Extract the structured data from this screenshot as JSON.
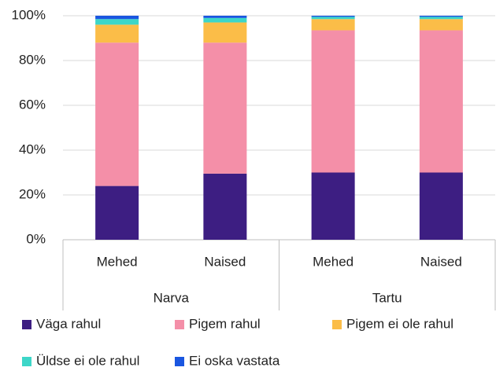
{
  "chart_data": {
    "type": "stacked_bar",
    "categories": [
      "Mehed",
      "Naised",
      "Mehed",
      "Naised"
    ],
    "groups": [
      "Narva",
      "Tartu"
    ],
    "series": [
      {
        "name": "Väga rahul",
        "color": "#3d1e82",
        "values": [
          24,
          29.5,
          30,
          30
        ]
      },
      {
        "name": "Pigem rahul",
        "color": "#f48fa8",
        "values": [
          64,
          58.5,
          63.5,
          63.5
        ]
      },
      {
        "name": "Pigem ei ole rahul",
        "color": "#fbbd48",
        "values": [
          8,
          9,
          5,
          5
        ]
      },
      {
        "name": "Üldse ei ole rahul",
        "color": "#3dd6c8",
        "values": [
          2.5,
          2,
          1,
          1
        ]
      },
      {
        "name": "Ei oska vastata",
        "color": "#1a56e0",
        "values": [
          1.5,
          1,
          0.5,
          0.5
        ]
      }
    ],
    "ylim": [
      0,
      100
    ],
    "yticks": [
      {
        "value": 0,
        "label": "0%"
      },
      {
        "value": 20,
        "label": "20%"
      },
      {
        "value": 40,
        "label": "40%"
      },
      {
        "value": 60,
        "label": "60%"
      },
      {
        "value": 80,
        "label": "80%"
      },
      {
        "value": 100,
        "label": "100%"
      }
    ],
    "grid": true
  }
}
